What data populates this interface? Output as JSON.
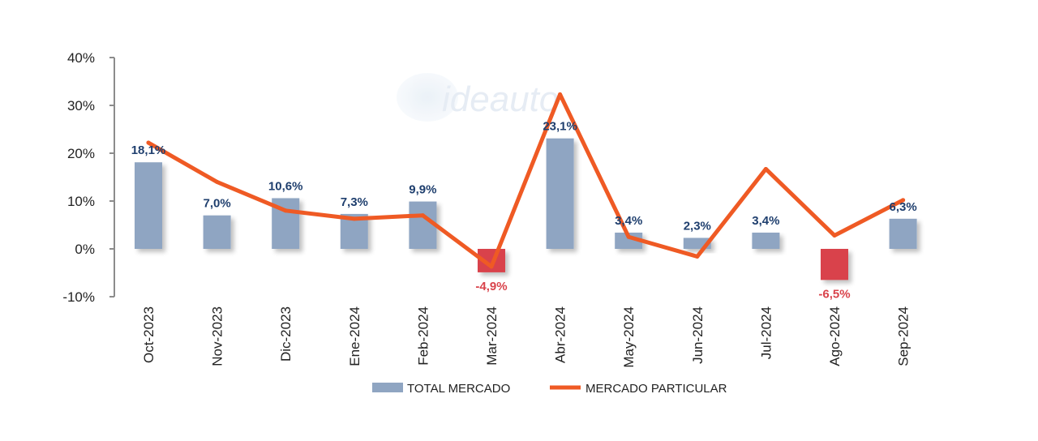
{
  "chart_data": {
    "type": "bar",
    "categories": [
      "Oct-2023",
      "Nov-2023",
      "Dic-2023",
      "Ene-2024",
      "Feb-2024",
      "Mar-2024",
      "Abr-2024",
      "May-2024",
      "Jun-2024",
      "Jul-2024",
      "Ago-2024",
      "Sep-2024"
    ],
    "series": [
      {
        "name": "TOTAL MERCADO",
        "type": "bar",
        "values": [
          18.1,
          7.0,
          10.6,
          7.3,
          9.9,
          -4.9,
          23.1,
          3.4,
          2.3,
          3.4,
          -6.5,
          6.3
        ],
        "labels": [
          "18,1%",
          "7,0%",
          "10,6%",
          "7,3%",
          "9,9%",
          "-4,9%",
          "23,1%",
          "3,4%",
          "2,3%",
          "3,4%",
          "-6,5%",
          "6,3%"
        ],
        "color": "#8fa5c2",
        "negative_color": "#d9434b"
      },
      {
        "name": "MERCADO PARTICULAR",
        "type": "line",
        "values": [
          22.2,
          14.0,
          8.0,
          6.3,
          7.0,
          -3.7,
          32.3,
          2.5,
          -1.6,
          16.7,
          2.8,
          10.2
        ],
        "color": "#ef5a24"
      }
    ],
    "yticks": [
      {
        "value": 40,
        "label": "40%"
      },
      {
        "value": 30,
        "label": "30%"
      },
      {
        "value": 20,
        "label": "20%"
      },
      {
        "value": 10,
        "label": "10%"
      },
      {
        "value": 0,
        "label": "0%"
      },
      {
        "value": -10,
        "label": "-10%"
      }
    ],
    "ylim": [
      -10,
      40
    ],
    "grid": false,
    "legend": "bottom",
    "label_color_positive": "#1f3f6e",
    "label_color_negative": "#d9434b",
    "title": "",
    "xlabel": "",
    "ylabel": ""
  },
  "watermark": {
    "text": "ideauto"
  }
}
